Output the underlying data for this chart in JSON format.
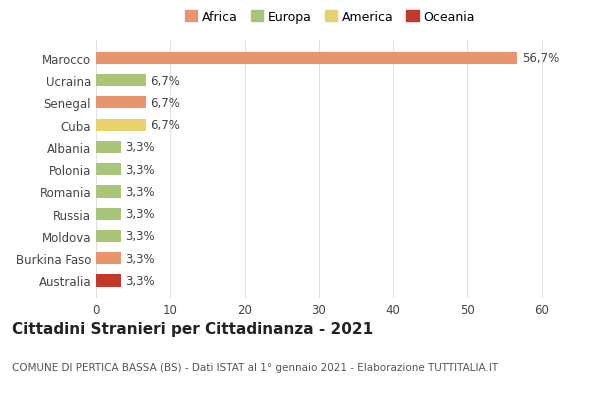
{
  "countries": [
    "Australia",
    "Burkina Faso",
    "Moldova",
    "Russia",
    "Romania",
    "Polonia",
    "Albania",
    "Cuba",
    "Senegal",
    "Ucraina",
    "Marocco"
  ],
  "values": [
    3.3,
    3.3,
    3.3,
    3.3,
    3.3,
    3.3,
    3.3,
    6.7,
    6.7,
    6.7,
    56.7
  ],
  "labels": [
    "3,3%",
    "3,3%",
    "3,3%",
    "3,3%",
    "3,3%",
    "3,3%",
    "3,3%",
    "6,7%",
    "6,7%",
    "6,7%",
    "56,7%"
  ],
  "colors": [
    "#c0392b",
    "#e8956d",
    "#a8c57a",
    "#a8c57a",
    "#a8c57a",
    "#a8c57a",
    "#a8c57a",
    "#e8d06a",
    "#e8956d",
    "#a8c57a",
    "#e8956d"
  ],
  "legend": [
    {
      "label": "Africa",
      "color": "#e8956d"
    },
    {
      "label": "Europa",
      "color": "#a8c57a"
    },
    {
      "label": "America",
      "color": "#e8d06a"
    },
    {
      "label": "Oceania",
      "color": "#c0392b"
    }
  ],
  "xlim": [
    0,
    63
  ],
  "xticks": [
    0,
    10,
    20,
    30,
    40,
    50,
    60
  ],
  "title": "Cittadini Stranieri per Cittadinanza - 2021",
  "subtitle": "COMUNE DI PERTICA BASSA (BS) - Dati ISTAT al 1° gennaio 2021 - Elaborazione TUTTITALIA.IT",
  "background_color": "#ffffff",
  "grid_color": "#e0e0e0",
  "bar_height": 0.55,
  "title_fontsize": 11,
  "subtitle_fontsize": 7.5,
  "label_fontsize": 8.5,
  "tick_fontsize": 8.5,
  "legend_fontsize": 9
}
